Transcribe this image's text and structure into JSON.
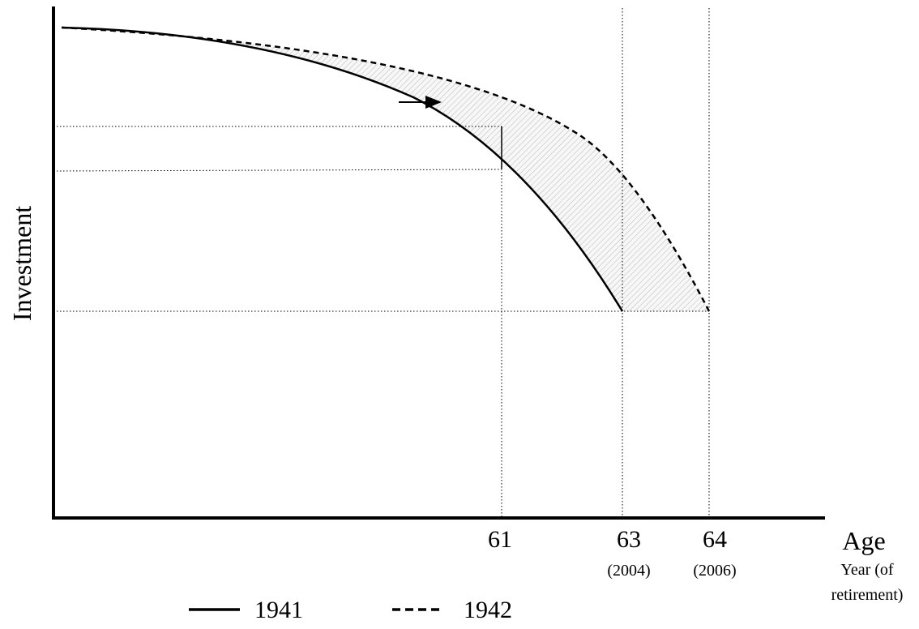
{
  "axes": {
    "y_label": "Investment",
    "x_label": "Age",
    "x_sublabel_line1": "Year (of",
    "x_sublabel_line2": "retirement)"
  },
  "ticks": [
    {
      "age": "61",
      "year": ""
    },
    {
      "age": "63",
      "year": "(2004)"
    },
    {
      "age": "64",
      "year": "(2006)"
    }
  ],
  "legend": [
    {
      "label": "1941",
      "style": "solid"
    },
    {
      "label": "1942",
      "style": "dashed"
    }
  ]
}
